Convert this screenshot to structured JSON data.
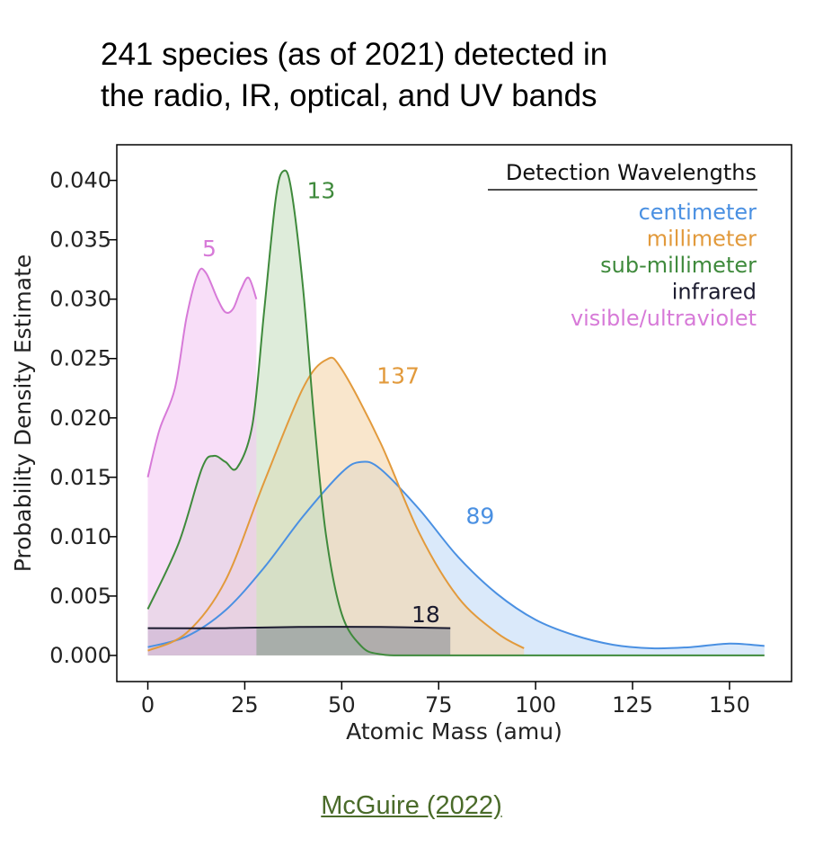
{
  "header": {
    "title_line1": "241 species (as of 2021) detected in",
    "title_line2": "the radio, IR, optical, and UV bands"
  },
  "citation": {
    "text": "McGuire (2022)",
    "color": "#4a6b2a"
  },
  "chart_data": {
    "type": "area",
    "xlabel": "Atomic Mass (amu)",
    "ylabel": "Probability Density Estimate",
    "xlim": [
      -8,
      166
    ],
    "ylim": [
      -0.0022,
      0.043
    ],
    "xticks": [
      0,
      25,
      50,
      75,
      100,
      125,
      150
    ],
    "yticks": [
      "0.000",
      "0.005",
      "0.010",
      "0.015",
      "0.020",
      "0.025",
      "0.030",
      "0.035",
      "0.040"
    ],
    "grid": false,
    "legend": {
      "title": "Detection Wavelengths",
      "placement": "top-right",
      "entries": [
        "centimeter",
        "millimeter",
        "sub-millimeter",
        "infrared",
        "visible/ultraviolet"
      ]
    },
    "series": [
      {
        "name": "centimeter",
        "count_label": "89",
        "label_at": [
          82,
          0.0111
        ],
        "color": "#4a90e2",
        "fill": "#c3dbf7",
        "points": [
          [
            0,
            0.0007
          ],
          [
            10,
            0.0016
          ],
          [
            20,
            0.0038
          ],
          [
            30,
            0.0074
          ],
          [
            40,
            0.0117
          ],
          [
            50,
            0.0154
          ],
          [
            55,
            0.0163
          ],
          [
            60,
            0.0157
          ],
          [
            70,
            0.0123
          ],
          [
            80,
            0.0083
          ],
          [
            90,
            0.0052
          ],
          [
            100,
            0.003
          ],
          [
            110,
            0.0017
          ],
          [
            120,
            0.0009
          ],
          [
            130,
            0.0006
          ],
          [
            140,
            0.0007
          ],
          [
            150,
            0.001
          ],
          [
            159,
            0.0008
          ]
        ]
      },
      {
        "name": "millimeter",
        "count_label": "137",
        "label_at": [
          59,
          0.0229
        ],
        "color": "#e29a3c",
        "fill": "#f6d7ad",
        "points": [
          [
            0,
            0.0004
          ],
          [
            10,
            0.0019
          ],
          [
            20,
            0.0063
          ],
          [
            30,
            0.0146
          ],
          [
            40,
            0.0225
          ],
          [
            46,
            0.0249
          ],
          [
            50,
            0.0241
          ],
          [
            60,
            0.0179
          ],
          [
            70,
            0.0103
          ],
          [
            80,
            0.0049
          ],
          [
            90,
            0.0019
          ],
          [
            97,
            0.0006
          ]
        ]
      },
      {
        "name": "sub-millimeter",
        "count_label": "13",
        "label_at": [
          41,
          0.0385
        ],
        "color": "#3f8a3c",
        "fill": "#c9e1c3",
        "points": [
          [
            0,
            0.0039
          ],
          [
            8,
            0.0095
          ],
          [
            14,
            0.0158
          ],
          [
            17,
            0.0168
          ],
          [
            20,
            0.0163
          ],
          [
            23,
            0.0158
          ],
          [
            27,
            0.0195
          ],
          [
            30,
            0.029
          ],
          [
            33,
            0.0385
          ],
          [
            35,
            0.0408
          ],
          [
            37,
            0.0392
          ],
          [
            40,
            0.031
          ],
          [
            43,
            0.0195
          ],
          [
            46,
            0.01
          ],
          [
            50,
            0.0035
          ],
          [
            55,
            0.0008
          ],
          [
            60,
            0.0001
          ],
          [
            70,
            0.0
          ],
          [
            100,
            0.0
          ],
          [
            159,
            0.0
          ]
        ]
      },
      {
        "name": "infrared",
        "count_label": "18",
        "label_at": [
          68,
          0.0028
        ],
        "color": "#1a1a2e",
        "fill": "#8d8f99",
        "points": [
          [
            0,
            0.0023
          ],
          [
            20,
            0.0023
          ],
          [
            40,
            0.0024
          ],
          [
            60,
            0.0024
          ],
          [
            78,
            0.0023
          ]
        ]
      },
      {
        "name": "visible/ultraviolet",
        "count_label": "5",
        "label_at": [
          14,
          0.0336
        ],
        "color": "#d77ad8",
        "fill": "#f3c9f3",
        "points": [
          [
            0,
            0.015
          ],
          [
            3,
            0.019
          ],
          [
            7,
            0.0225
          ],
          [
            10,
            0.0285
          ],
          [
            13,
            0.0322
          ],
          [
            15,
            0.0322
          ],
          [
            18,
            0.03
          ],
          [
            20,
            0.0289
          ],
          [
            22,
            0.0292
          ],
          [
            24,
            0.0308
          ],
          [
            26,
            0.0318
          ],
          [
            28,
            0.03
          ]
        ]
      }
    ]
  }
}
